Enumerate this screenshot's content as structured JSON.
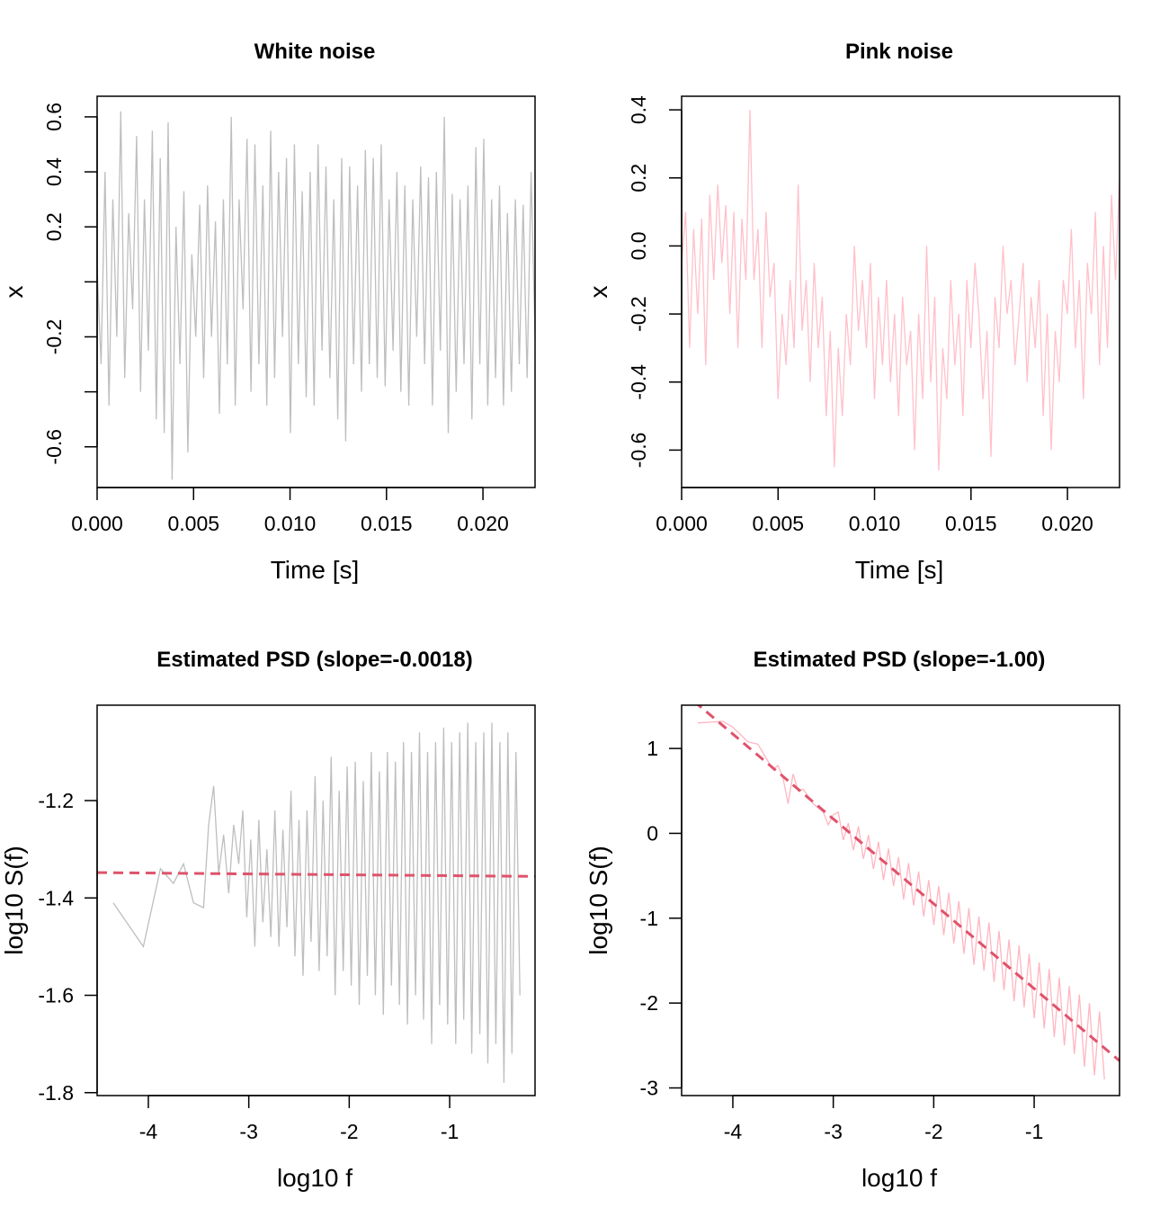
{
  "chart_data": [
    {
      "type": "line",
      "title": "White noise",
      "xlabel": "Time [s]",
      "ylabel": "x",
      "xlim": [
        0,
        0.0227
      ],
      "ylim": [
        -0.748,
        0.675
      ],
      "xticks": [
        0,
        0.005,
        0.01,
        0.015,
        0.02
      ],
      "xtick_labels": [
        "0.000",
        "0.005",
        "0.010",
        "0.015",
        "0.020"
      ],
      "yticks": [
        0.6,
        0.4,
        0.2,
        0,
        -0.2,
        -0.4,
        -0.6
      ],
      "ytick_labels": [
        "0.6",
        "0.4",
        "0.2",
        "",
        "-0.2",
        "",
        "-0.6"
      ],
      "ytick_rotated": true,
      "color": "#BEBEBE",
      "series": [
        {
          "x_range": [
            0,
            0.0227
          ],
          "values": [
            0.05,
            -0.3,
            0.4,
            -0.45,
            0.3,
            -0.2,
            0.62,
            -0.35,
            0.25,
            -0.1,
            0.53,
            -0.4,
            0.3,
            -0.25,
            0.55,
            -0.5,
            0.45,
            -0.55,
            0.58,
            -0.72,
            0.2,
            -0.3,
            0.33,
            -0.62,
            0.1,
            -0.2,
            0.28,
            -0.35,
            0.35,
            -0.2,
            0.22,
            -0.48,
            0.3,
            -0.3,
            0.6,
            -0.45,
            0.3,
            -0.1,
            0.52,
            -0.4,
            0.5,
            -0.3,
            0.35,
            -0.45,
            0.55,
            -0.35,
            0.4,
            -0.2,
            0.45,
            -0.55,
            0.5,
            -0.3,
            0.33,
            -0.42,
            0.4,
            -0.45,
            0.5,
            -0.25,
            0.42,
            -0.35,
            0.3,
            -0.5,
            0.45,
            -0.58,
            0.42,
            -0.3,
            0.35,
            -0.4,
            0.48,
            -0.3,
            0.45,
            -0.35,
            0.5,
            -0.38,
            0.3,
            -0.25,
            0.4,
            -0.4,
            0.35,
            -0.45,
            0.3,
            -0.2,
            0.42,
            -0.3,
            0.38,
            -0.45,
            0.4,
            -0.25,
            0.6,
            -0.55,
            0.32,
            -0.4,
            0.3,
            -0.3,
            0.35,
            -0.5,
            0.49,
            -0.3,
            0.52,
            -0.45,
            0.3,
            -0.35,
            0.35,
            -0.45,
            0.25,
            -0.4,
            0.3,
            -0.3,
            0.28,
            -0.35,
            0.4,
            -0.2
          ]
        }
      ]
    },
    {
      "type": "line",
      "title": "Pink noise",
      "xlabel": "Time [s]",
      "ylabel": "x",
      "xlim": [
        0,
        0.0227
      ],
      "ylim": [
        -0.71,
        0.44
      ],
      "xticks": [
        0,
        0.005,
        0.01,
        0.015,
        0.02
      ],
      "xtick_labels": [
        "0.000",
        "0.005",
        "0.010",
        "0.015",
        "0.020"
      ],
      "yticks": [
        0.4,
        0.2,
        0,
        -0.2,
        -0.4,
        -0.6
      ],
      "ytick_labels": [
        "0.4",
        "0.2",
        "0.0",
        "-0.2",
        "-0.4",
        "-0.6"
      ],
      "ytick_rotated": true,
      "color": "#FFC0CB",
      "series": [
        {
          "x_range": [
            0,
            0.0227
          ],
          "values": [
            -0.05,
            0.1,
            -0.3,
            0.05,
            -0.2,
            0.08,
            -0.35,
            0.15,
            -0.1,
            0.18,
            -0.05,
            0.12,
            -0.2,
            0.1,
            -0.3,
            0.08,
            -0.1,
            0.4,
            -0.1,
            0.05,
            -0.3,
            0.1,
            -0.15,
            -0.05,
            -0.45,
            -0.2,
            -0.35,
            -0.1,
            -0.3,
            0.18,
            -0.25,
            -0.1,
            -0.4,
            -0.05,
            -0.3,
            -0.15,
            -0.5,
            -0.25,
            -0.65,
            -0.3,
            -0.5,
            -0.2,
            -0.35,
            0.0,
            -0.25,
            -0.1,
            -0.3,
            -0.05,
            -0.45,
            -0.15,
            -0.35,
            -0.1,
            -0.4,
            -0.2,
            -0.5,
            -0.15,
            -0.35,
            -0.25,
            -0.6,
            -0.2,
            -0.45,
            0.0,
            -0.4,
            -0.15,
            -0.66,
            -0.3,
            -0.45,
            -0.1,
            -0.35,
            -0.2,
            -0.5,
            -0.1,
            -0.3,
            -0.05,
            -0.2,
            -0.45,
            -0.25,
            -0.62,
            -0.15,
            -0.3,
            0.0,
            -0.2,
            -0.1,
            -0.35,
            -0.2,
            -0.05,
            -0.4,
            -0.15,
            -0.3,
            -0.1,
            -0.5,
            -0.2,
            -0.6,
            -0.25,
            -0.4,
            -0.1,
            -0.2,
            0.05,
            -0.3,
            -0.1,
            -0.45,
            -0.05,
            -0.2,
            0.1,
            -0.35,
            0.0,
            -0.3,
            0.15,
            -0.1,
            0.2
          ]
        }
      ]
    },
    {
      "type": "line",
      "title": "Estimated PSD (slope=-0.0018)",
      "xlabel": "log10 f",
      "ylabel": "log10 S(f)",
      "xlim": [
        -4.51,
        -0.15
      ],
      "ylim": [
        -1.806,
        -1.004
      ],
      "xticks": [
        -4,
        -3,
        -2,
        -1
      ],
      "xtick_labels": [
        "-4",
        "-3",
        "-2",
        "-1"
      ],
      "yticks": [
        -1.2,
        -1.4,
        -1.6,
        -1.8
      ],
      "ytick_labels": [
        "-1.2",
        "-1.4",
        "-1.6",
        "-1.8"
      ],
      "ytick_rotated": false,
      "color": "#BEBEBE",
      "fit": {
        "slope": -0.0018,
        "intercept": -1.356,
        "color": "#DF536B",
        "dashed": true
      },
      "series": [
        {
          "points": [
            [
              -4.35,
              -1.41
            ],
            [
              -4.05,
              -1.5
            ],
            [
              -3.88,
              -1.34
            ],
            [
              -3.75,
              -1.37
            ],
            [
              -3.65,
              -1.33
            ],
            [
              -3.55,
              -1.41
            ],
            [
              -3.45,
              -1.42
            ],
            [
              -3.4,
              -1.25
            ],
            [
              -3.35,
              -1.17
            ],
            [
              -3.3,
              -1.35
            ],
            [
              -3.25,
              -1.27
            ],
            [
              -3.2,
              -1.39
            ],
            [
              -3.15,
              -1.25
            ],
            [
              -3.1,
              -1.33
            ],
            [
              -3.06,
              -1.22
            ],
            [
              -3.02,
              -1.44
            ],
            [
              -2.98,
              -1.28
            ],
            [
              -2.94,
              -1.5
            ],
            [
              -2.9,
              -1.24
            ],
            [
              -2.86,
              -1.45
            ],
            [
              -2.82,
              -1.3
            ],
            [
              -2.78,
              -1.48
            ],
            [
              -2.74,
              -1.22
            ],
            [
              -2.7,
              -1.5
            ],
            [
              -2.66,
              -1.26
            ],
            [
              -2.62,
              -1.46
            ],
            [
              -2.58,
              -1.18
            ],
            [
              -2.54,
              -1.52
            ],
            [
              -2.5,
              -1.24
            ],
            [
              -2.46,
              -1.56
            ],
            [
              -2.42,
              -1.22
            ],
            [
              -2.38,
              -1.49
            ],
            [
              -2.34,
              -1.15
            ],
            [
              -2.3,
              -1.55
            ],
            [
              -2.26,
              -1.2
            ],
            [
              -2.22,
              -1.52
            ],
            [
              -2.18,
              -1.11
            ],
            [
              -2.14,
              -1.6
            ],
            [
              -2.1,
              -1.18
            ],
            [
              -2.06,
              -1.55
            ],
            [
              -2.02,
              -1.13
            ],
            [
              -1.98,
              -1.58
            ],
            [
              -1.94,
              -1.12
            ],
            [
              -1.9,
              -1.62
            ],
            [
              -1.86,
              -1.16
            ],
            [
              -1.82,
              -1.56
            ],
            [
              -1.78,
              -1.1
            ],
            [
              -1.74,
              -1.6
            ],
            [
              -1.7,
              -1.14
            ],
            [
              -1.66,
              -1.64
            ],
            [
              -1.62,
              -1.1
            ],
            [
              -1.58,
              -1.58
            ],
            [
              -1.54,
              -1.12
            ],
            [
              -1.5,
              -1.62
            ],
            [
              -1.46,
              -1.08
            ],
            [
              -1.42,
              -1.66
            ],
            [
              -1.38,
              -1.1
            ],
            [
              -1.34,
              -1.6
            ],
            [
              -1.3,
              -1.06
            ],
            [
              -1.26,
              -1.65
            ],
            [
              -1.22,
              -1.1
            ],
            [
              -1.18,
              -1.7
            ],
            [
              -1.14,
              -1.08
            ],
            [
              -1.1,
              -1.62
            ],
            [
              -1.06,
              -1.05
            ],
            [
              -1.02,
              -1.66
            ],
            [
              -0.98,
              -1.08
            ],
            [
              -0.94,
              -1.7
            ],
            [
              -0.9,
              -1.06
            ],
            [
              -0.86,
              -1.65
            ],
            [
              -0.82,
              -1.04
            ],
            [
              -0.78,
              -1.72
            ],
            [
              -0.74,
              -1.08
            ],
            [
              -0.7,
              -1.68
            ],
            [
              -0.66,
              -1.06
            ],
            [
              -0.62,
              -1.74
            ],
            [
              -0.58,
              -1.04
            ],
            [
              -0.54,
              -1.7
            ],
            [
              -0.5,
              -1.08
            ],
            [
              -0.46,
              -1.78
            ],
            [
              -0.42,
              -1.06
            ],
            [
              -0.38,
              -1.72
            ],
            [
              -0.34,
              -1.1
            ],
            [
              -0.3,
              -1.6
            ]
          ]
        }
      ]
    },
    {
      "type": "line",
      "title": "Estimated PSD (slope=-1.00)",
      "xlabel": "log10 f",
      "ylabel": "log10 S(f)",
      "xlim": [
        -4.51,
        -0.15
      ],
      "ylim": [
        -3.09,
        1.51
      ],
      "xticks": [
        -4,
        -3,
        -2,
        -1
      ],
      "xtick_labels": [
        "-4",
        "-3",
        "-2",
        "-1"
      ],
      "yticks": [
        1,
        0,
        -1,
        -2,
        -3
      ],
      "ytick_labels": [
        "1",
        "0",
        "-1",
        "-2",
        "-3"
      ],
      "ytick_rotated": false,
      "color": "#FFB6C1",
      "fit": {
        "slope": -1.0,
        "intercept": -2.83,
        "color": "#DF536B",
        "dashed": true
      },
      "series": [
        {
          "points": [
            [
              -4.35,
              1.3
            ],
            [
              -4.1,
              1.32
            ],
            [
              -4.0,
              1.25
            ],
            [
              -3.85,
              1.08
            ],
            [
              -3.75,
              1.05
            ],
            [
              -3.6,
              0.75
            ],
            [
              -3.55,
              0.8
            ],
            [
              -3.5,
              0.65
            ],
            [
              -3.45,
              0.35
            ],
            [
              -3.4,
              0.7
            ],
            [
              -3.35,
              0.5
            ],
            [
              -3.3,
              0.52
            ],
            [
              -3.2,
              0.35
            ],
            [
              -3.1,
              0.25
            ],
            [
              -3.05,
              0.1
            ],
            [
              -3.0,
              0.22
            ],
            [
              -2.95,
              0.25
            ],
            [
              -2.9,
              -0.08
            ],
            [
              -2.85,
              0.12
            ],
            [
              -2.8,
              -0.2
            ],
            [
              -2.75,
              0.08
            ],
            [
              -2.7,
              -0.3
            ],
            [
              -2.65,
              -0.02
            ],
            [
              -2.6,
              -0.42
            ],
            [
              -2.55,
              -0.1
            ],
            [
              -2.5,
              -0.55
            ],
            [
              -2.45,
              -0.18
            ],
            [
              -2.4,
              -0.62
            ],
            [
              -2.35,
              -0.28
            ],
            [
              -2.3,
              -0.78
            ],
            [
              -2.25,
              -0.35
            ],
            [
              -2.2,
              -0.85
            ],
            [
              -2.15,
              -0.45
            ],
            [
              -2.1,
              -0.98
            ],
            [
              -2.05,
              -0.55
            ],
            [
              -2.0,
              -1.08
            ],
            [
              -1.95,
              -0.62
            ],
            [
              -1.9,
              -1.2
            ],
            [
              -1.85,
              -0.7
            ],
            [
              -1.8,
              -1.3
            ],
            [
              -1.75,
              -0.8
            ],
            [
              -1.7,
              -1.42
            ],
            [
              -1.65,
              -0.88
            ],
            [
              -1.6,
              -1.55
            ],
            [
              -1.55,
              -0.98
            ],
            [
              -1.5,
              -1.62
            ],
            [
              -1.45,
              -1.05
            ],
            [
              -1.4,
              -1.75
            ],
            [
              -1.35,
              -1.15
            ],
            [
              -1.3,
              -1.85
            ],
            [
              -1.25,
              -1.25
            ],
            [
              -1.2,
              -1.98
            ],
            [
              -1.15,
              -1.32
            ],
            [
              -1.1,
              -2.05
            ],
            [
              -1.05,
              -1.42
            ],
            [
              -1.0,
              -2.18
            ],
            [
              -0.95,
              -1.52
            ],
            [
              -0.9,
              -2.3
            ],
            [
              -0.85,
              -1.6
            ],
            [
              -0.8,
              -2.4
            ],
            [
              -0.75,
              -1.7
            ],
            [
              -0.7,
              -2.5
            ],
            [
              -0.65,
              -1.8
            ],
            [
              -0.6,
              -2.6
            ],
            [
              -0.55,
              -1.9
            ],
            [
              -0.5,
              -2.75
            ],
            [
              -0.45,
              -2.0
            ],
            [
              -0.4,
              -2.85
            ],
            [
              -0.35,
              -2.1
            ],
            [
              -0.3,
              -2.9
            ]
          ]
        }
      ]
    }
  ]
}
